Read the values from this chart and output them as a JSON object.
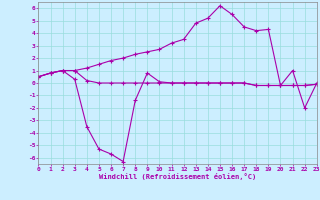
{
  "xlabel": "Windchill (Refroidissement éolien,°C)",
  "xlim": [
    0,
    23
  ],
  "ylim": [
    -6.5,
    6.5
  ],
  "xticks": [
    0,
    1,
    2,
    3,
    4,
    5,
    6,
    7,
    8,
    9,
    10,
    11,
    12,
    13,
    14,
    15,
    16,
    17,
    18,
    19,
    20,
    21,
    22,
    23
  ],
  "yticks": [
    -6,
    -5,
    -4,
    -3,
    -2,
    -1,
    0,
    1,
    2,
    3,
    4,
    5,
    6
  ],
  "bg_color": "#cceeff",
  "grid_color": "#99dddd",
  "line_color": "#aa00aa",
  "series": [
    {
      "x": [
        0,
        1,
        2,
        3,
        4,
        5,
        6,
        7,
        8,
        9,
        10,
        11,
        12,
        13,
        14,
        15,
        16,
        17,
        18,
        19,
        20,
        21,
        22,
        23
      ],
      "y": [
        0.5,
        0.8,
        1.0,
        0.3,
        -3.5,
        -5.3,
        -5.7,
        -6.3,
        -1.4,
        0.8,
        0.1,
        0.0,
        0.0,
        0.0,
        0.0,
        0.0,
        0.0,
        0.0,
        -0.2,
        -0.2,
        -0.2,
        -0.2,
        -0.2,
        -0.1
      ]
    },
    {
      "x": [
        0,
        1,
        2,
        3,
        4,
        5,
        6,
        7,
        8,
        9,
        10,
        11,
        12,
        13,
        14,
        15,
        16,
        17,
        18,
        19,
        20,
        21,
        22,
        23
      ],
      "y": [
        0.5,
        0.8,
        1.0,
        1.0,
        0.2,
        0.0,
        0.0,
        0.0,
        0.0,
        0.0,
        0.0,
        0.0,
        0.0,
        0.0,
        0.0,
        0.0,
        0.0,
        0.0,
        -0.2,
        -0.2,
        -0.2,
        -0.2,
        -0.2,
        -0.1
      ]
    },
    {
      "x": [
        0,
        1,
        2,
        3,
        4,
        5,
        6,
        7,
        8,
        9,
        10,
        11,
        12,
        13,
        14,
        15,
        16,
        17,
        18,
        19,
        20,
        21,
        22,
        23
      ],
      "y": [
        0.5,
        0.8,
        1.0,
        1.0,
        1.2,
        1.5,
        1.8,
        2.0,
        2.3,
        2.5,
        2.7,
        3.2,
        3.5,
        4.8,
        5.2,
        6.2,
        5.5,
        4.5,
        4.2,
        4.3,
        -0.2,
        1.0,
        -2.0,
        0.0
      ]
    }
  ]
}
